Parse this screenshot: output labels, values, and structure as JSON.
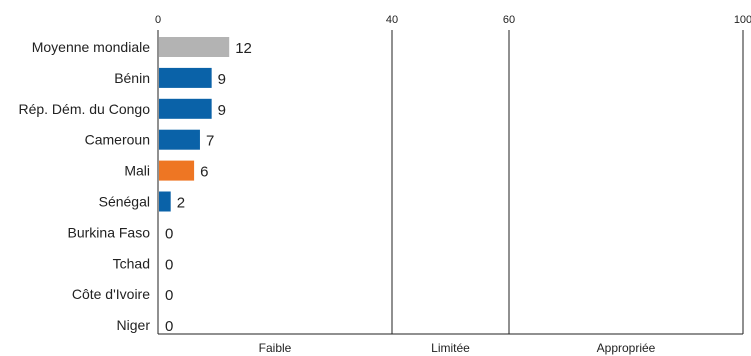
{
  "chart_data": {
    "type": "bar",
    "orientation": "horizontal",
    "categories": [
      "Moyenne mondiale",
      "Bénin",
      "Rép. Dém. du Congo",
      "Cameroun",
      "Mali",
      "Sénégal",
      "Burkina Faso",
      "Tchad",
      "Côte d'Ivoire",
      "Niger"
    ],
    "values": [
      12,
      9,
      9,
      7,
      6,
      2,
      0,
      0,
      0,
      0
    ],
    "value_labels": [
      "12",
      "9",
      "9",
      "7",
      "6",
      "2",
      "0",
      "0",
      "0",
      "0"
    ],
    "bar_colors": [
      "#b3b3b3",
      "#0a62a8",
      "#0a62a8",
      "#0a62a8",
      "#ee7623",
      "#0a62a8",
      "#0a62a8",
      "#0a62a8",
      "#0a62a8",
      "#0a62a8"
    ],
    "xlim": [
      0,
      100
    ],
    "xticks": [
      0,
      40,
      60,
      100
    ],
    "xtick_labels": [
      "0",
      "40",
      "60",
      "100"
    ],
    "xtick_position": "top",
    "bands": [
      {
        "label": "Faible",
        "from": 0,
        "to": 40
      },
      {
        "label": "Limitée",
        "from": 40,
        "to": 60
      },
      {
        "label": "Appropriée",
        "from": 60,
        "to": 100
      }
    ],
    "band_label_position": "bottom",
    "grid": "vertical lines at band boundaries",
    "title": "",
    "xlabel": "",
    "ylabel": "",
    "legend": "none"
  }
}
